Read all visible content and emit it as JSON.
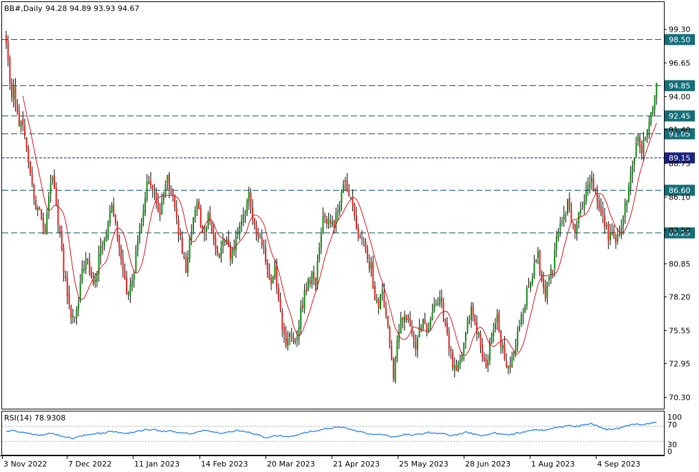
{
  "header": {
    "symbol": "BB#,Daily",
    "ohlc": "94.28 94.89 93.93 94.67"
  },
  "rsi_header": {
    "label": "RSI(14) 78.9308"
  },
  "colors": {
    "bull": "#0a8a0a",
    "bear": "#e0201c",
    "ma": "#d0141c",
    "rsi_line": "#3c8ee8",
    "level_line": "#0a5a66",
    "level_label_bg": "#136e78",
    "highlight_line": "#1a2a6c",
    "highlight_label_bg": "#1a237e"
  },
  "chart_data": [
    {
      "type": "candlestick",
      "title": "BB#,Daily",
      "y_ticks": [
        "99.30",
        "96.65",
        "94.00",
        "91.40",
        "88.75",
        "86.10",
        "83.50",
        "80.85",
        "78.20",
        "75.55",
        "72.95",
        "70.30"
      ],
      "ylim": [
        69.4,
        101.4
      ],
      "x_tick_labels": [
        "3 Nov 2022",
        "7 Dec 2022",
        "11 Jan 2023",
        "14 Feb 2023",
        "20 Mar 2023",
        "21 Apr 2023",
        "25 May 2023",
        "28 Jun 2023",
        "1 Aug 2023",
        "4 Sep 2023"
      ],
      "levels": [
        {
          "label": "98.50",
          "value": 98.5,
          "style": "dashed"
        },
        {
          "label": "94.85",
          "value": 94.85,
          "style": "dashed"
        },
        {
          "label": "92.45",
          "value": 92.45,
          "style": "dashed"
        },
        {
          "label": "91.05",
          "value": 91.05,
          "style": "dashed"
        },
        {
          "label": "89.15",
          "value": 89.15,
          "style": "highlight"
        },
        {
          "label": "86.60",
          "value": 86.6,
          "style": "dashed"
        },
        {
          "label": "83.25",
          "value": 83.25,
          "style": "dashed"
        }
      ],
      "close_path": [
        [
          0,
          98.5
        ],
        [
          1,
          97.2
        ],
        [
          2,
          95.0
        ],
        [
          3,
          93.5
        ],
        [
          4,
          94.8
        ],
        [
          5,
          93.0
        ],
        [
          7,
          92.0
        ],
        [
          9,
          91.5
        ],
        [
          11,
          90.0
        ],
        [
          13,
          88.0
        ],
        [
          15,
          86.0
        ],
        [
          17,
          85.0
        ],
        [
          19,
          84.5
        ],
        [
          21,
          83.5
        ],
        [
          23,
          86.0
        ],
        [
          25,
          87.8
        ],
        [
          27,
          85.5
        ],
        [
          29,
          83.0
        ],
        [
          31,
          80.5
        ],
        [
          33,
          78.5
        ],
        [
          35,
          76.5
        ],
        [
          37,
          76.2
        ],
        [
          39,
          78.0
        ],
        [
          41,
          80.0
        ],
        [
          43,
          81.5
        ],
        [
          45,
          80.0
        ],
        [
          47,
          79.2
        ],
        [
          49,
          80.5
        ],
        [
          51,
          81.8
        ],
        [
          53,
          82.5
        ],
        [
          55,
          84.0
        ],
        [
          57,
          85.5
        ],
        [
          59,
          84.2
        ],
        [
          61,
          82.5
        ],
        [
          63,
          80.5
        ],
        [
          65,
          78.3
        ],
        [
          67,
          79.0
        ],
        [
          69,
          80.5
        ],
        [
          71,
          82.5
        ],
        [
          73,
          84.0
        ],
        [
          75,
          86.2
        ],
        [
          77,
          87.5
        ],
        [
          79,
          87.0
        ],
        [
          81,
          85.8
        ],
        [
          83,
          85.0
        ],
        [
          85,
          86.5
        ],
        [
          87,
          87.5
        ],
        [
          89,
          86.5
        ],
        [
          91,
          85.5
        ],
        [
          93,
          83.5
        ],
        [
          95,
          82.0
        ],
        [
          97,
          80.0
        ],
        [
          99,
          82.5
        ],
        [
          101,
          84.5
        ],
        [
          103,
          85.5
        ],
        [
          105,
          84.0
        ],
        [
          107,
          83.0
        ],
        [
          109,
          84.5
        ],
        [
          111,
          83.0
        ],
        [
          113,
          82.0
        ],
        [
          115,
          81.5
        ],
        [
          117,
          83.0
        ],
        [
          119,
          82.5
        ],
        [
          121,
          81.5
        ],
        [
          123,
          82.0
        ],
        [
          125,
          83.5
        ],
        [
          127,
          84.0
        ],
        [
          129,
          85.0
        ],
        [
          131,
          86.2
        ],
        [
          133,
          84.5
        ],
        [
          135,
          83.5
        ],
        [
          137,
          82.8
        ],
        [
          139,
          82.0
        ],
        [
          141,
          80.0
        ],
        [
          143,
          79.5
        ],
        [
          145,
          80.5
        ],
        [
          147,
          78.0
        ],
        [
          149,
          76.0
        ],
        [
          151,
          74.0
        ],
        [
          153,
          75.5
        ],
        [
          155,
          74.5
        ],
        [
          157,
          75.0
        ],
        [
          159,
          77.0
        ],
        [
          161,
          78.5
        ],
        [
          163,
          79.2
        ],
        [
          165,
          80.0
        ],
        [
          167,
          79.3
        ],
        [
          169,
          82.5
        ],
        [
          171,
          84.5
        ],
        [
          173,
          84.0
        ],
        [
          175,
          84.3
        ],
        [
          177,
          83.8
        ],
        [
          179,
          85.0
        ],
        [
          181,
          86.5
        ],
        [
          183,
          87.2
        ],
        [
          185,
          86.0
        ],
        [
          187,
          85.5
        ],
        [
          189,
          84.0
        ],
        [
          191,
          82.5
        ],
        [
          193,
          83.0
        ],
        [
          195,
          81.0
        ],
        [
          197,
          80.5
        ],
        [
          199,
          78.0
        ],
        [
          201,
          77.5
        ],
        [
          203,
          78.5
        ],
        [
          205,
          77.0
        ],
        [
          207,
          74.5
        ],
        [
          209,
          72.0
        ],
        [
          211,
          74.5
        ],
        [
          213,
          76.5
        ],
        [
          215,
          77.0
        ],
        [
          217,
          76.0
        ],
        [
          219,
          75.5
        ],
        [
          221,
          74.5
        ],
        [
          223,
          75.5
        ],
        [
          225,
          76.2
        ],
        [
          227,
          75.5
        ],
        [
          229,
          76.5
        ],
        [
          231,
          77.2
        ],
        [
          233,
          78.0
        ],
        [
          235,
          77.5
        ],
        [
          237,
          76.0
        ],
        [
          239,
          74.5
        ],
        [
          241,
          73.0
        ],
        [
          243,
          72.5
        ],
        [
          245,
          73.5
        ],
        [
          247,
          74.5
        ],
        [
          249,
          76.5
        ],
        [
          251,
          77.2
        ],
        [
          253,
          76.0
        ],
        [
          255,
          75.0
        ],
        [
          257,
          73.5
        ],
        [
          259,
          72.5
        ],
        [
          261,
          74.5
        ],
        [
          263,
          75.5
        ],
        [
          265,
          76.5
        ],
        [
          267,
          74.5
        ],
        [
          269,
          73.5
        ],
        [
          271,
          72.5
        ],
        [
          273,
          73.5
        ],
        [
          275,
          74.5
        ],
        [
          277,
          76.0
        ],
        [
          279,
          77.0
        ],
        [
          281,
          78.5
        ],
        [
          283,
          79.0
        ],
        [
          285,
          80.5
        ],
        [
          287,
          81.5
        ],
        [
          289,
          79.5
        ],
        [
          291,
          78.5
        ],
        [
          293,
          79.5
        ],
        [
          295,
          80.5
        ],
        [
          297,
          82.5
        ],
        [
          299,
          83.5
        ],
        [
          301,
          84.5
        ],
        [
          303,
          85.5
        ],
        [
          305,
          84.0
        ],
        [
          307,
          83.5
        ],
        [
          309,
          84.5
        ],
        [
          311,
          85.5
        ],
        [
          313,
          86.5
        ],
        [
          315,
          87.5
        ],
        [
          317,
          87.0
        ],
        [
          319,
          86.0
        ],
        [
          321,
          85.0
        ],
        [
          323,
          84.0
        ],
        [
          325,
          83.0
        ],
        [
          327,
          83.5
        ],
        [
          329,
          82.5
        ],
        [
          331,
          83.5
        ],
        [
          333,
          84.5
        ],
        [
          335,
          86.0
        ],
        [
          337,
          88.0
        ],
        [
          339,
          89.5
        ],
        [
          341,
          90.5
        ],
        [
          343,
          89.5
        ],
        [
          345,
          91.0
        ],
        [
          347,
          92.0
        ],
        [
          349,
          93.5
        ],
        [
          351,
          94.7
        ]
      ],
      "rsi": {
        "label": "RSI(14) 78.9308",
        "y_ticks": [
          "100",
          "70",
          "30",
          "0"
        ],
        "ylim": [
          0,
          100
        ],
        "levels": [
          70,
          30
        ],
        "path": [
          [
            0,
            55
          ],
          [
            4,
            58
          ],
          [
            8,
            52
          ],
          [
            12,
            50
          ],
          [
            16,
            44
          ],
          [
            20,
            45
          ],
          [
            24,
            50
          ],
          [
            28,
            45
          ],
          [
            32,
            40
          ],
          [
            36,
            36
          ],
          [
            40,
            42
          ],
          [
            44,
            46
          ],
          [
            48,
            48
          ],
          [
            52,
            50
          ],
          [
            56,
            55
          ],
          [
            60,
            53
          ],
          [
            64,
            48
          ],
          [
            68,
            52
          ],
          [
            72,
            56
          ],
          [
            76,
            60
          ],
          [
            80,
            58
          ],
          [
            84,
            55
          ],
          [
            88,
            56
          ],
          [
            92,
            52
          ],
          [
            96,
            50
          ],
          [
            100,
            48
          ],
          [
            104,
            55
          ],
          [
            108,
            56
          ],
          [
            112,
            52
          ],
          [
            116,
            51
          ],
          [
            120,
            53
          ],
          [
            124,
            57
          ],
          [
            128,
            56
          ],
          [
            132,
            50
          ],
          [
            136,
            46
          ],
          [
            140,
            38
          ],
          [
            144,
            42
          ],
          [
            148,
            44
          ],
          [
            152,
            40
          ],
          [
            156,
            44
          ],
          [
            160,
            50
          ],
          [
            164,
            54
          ],
          [
            168,
            56
          ],
          [
            172,
            62
          ],
          [
            176,
            64
          ],
          [
            180,
            66
          ],
          [
            184,
            62
          ],
          [
            188,
            58
          ],
          [
            192,
            52
          ],
          [
            196,
            48
          ],
          [
            200,
            45
          ],
          [
            204,
            47
          ],
          [
            208,
            40
          ],
          [
            212,
            43
          ],
          [
            216,
            47
          ],
          [
            220,
            44
          ],
          [
            224,
            48
          ],
          [
            228,
            52
          ],
          [
            232,
            50
          ],
          [
            236,
            48
          ],
          [
            240,
            44
          ],
          [
            244,
            46
          ],
          [
            248,
            52
          ],
          [
            252,
            48
          ],
          [
            256,
            44
          ],
          [
            260,
            46
          ],
          [
            264,
            50
          ],
          [
            268,
            46
          ],
          [
            272,
            45
          ],
          [
            276,
            50
          ],
          [
            280,
            54
          ],
          [
            284,
            58
          ],
          [
            288,
            56
          ],
          [
            292,
            60
          ],
          [
            296,
            64
          ],
          [
            300,
            66
          ],
          [
            304,
            70
          ],
          [
            308,
            68
          ],
          [
            312,
            72
          ],
          [
            316,
            74
          ],
          [
            320,
            66
          ],
          [
            324,
            60
          ],
          [
            328,
            62
          ],
          [
            332,
            64
          ],
          [
            336,
            70
          ],
          [
            340,
            74
          ],
          [
            344,
            72
          ],
          [
            348,
            76
          ],
          [
            351,
            79
          ]
        ]
      }
    }
  ]
}
